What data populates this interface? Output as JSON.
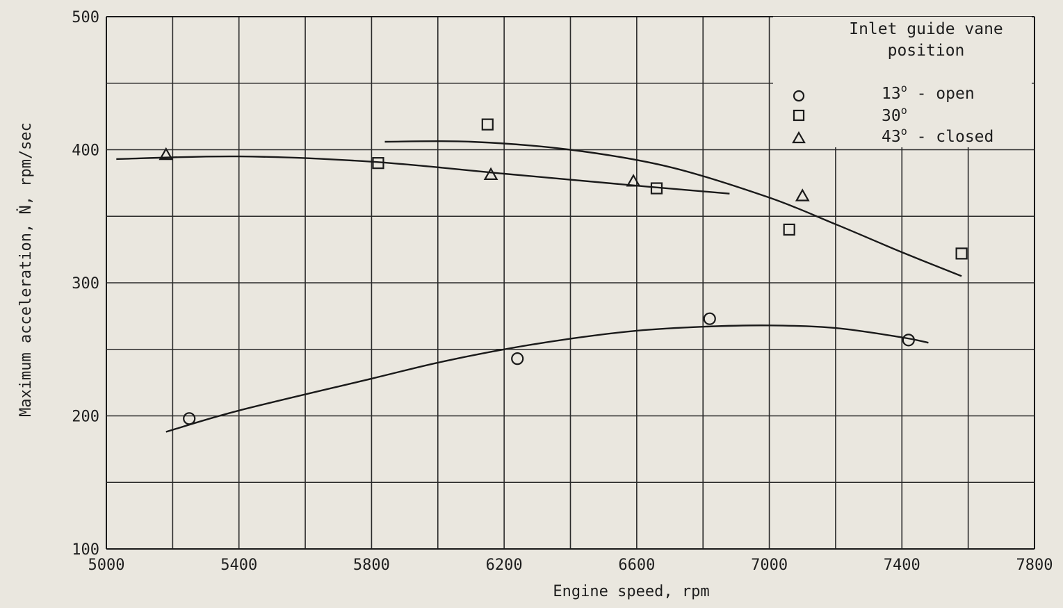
{
  "chart_data": {
    "type": "line",
    "title": "",
    "xlabel": "Engine speed, rpm",
    "ylabel": "Maximum acceleration, Ṅ, rpm/sec",
    "xlim": [
      5000,
      7800
    ],
    "ylim": [
      100,
      500
    ],
    "x_ticks": [
      5000,
      5400,
      5800,
      6200,
      6600,
      7000,
      7400,
      7800
    ],
    "y_ticks": [
      100,
      200,
      300,
      400,
      500
    ],
    "x_grid_step": 200,
    "y_grid_step": 50,
    "grid": true,
    "legend": {
      "title": [
        "Inlet guide vane",
        "position"
      ],
      "placement": "top-right",
      "entries": [
        {
          "marker": "circle",
          "label": "13° - open",
          "number": "13",
          "degree": "o",
          "suffix": " - open"
        },
        {
          "marker": "square",
          "label": "30°",
          "number": "30",
          "degree": "o",
          "suffix": ""
        },
        {
          "marker": "triangle",
          "label": "43° - closed",
          "number": "43",
          "degree": "o",
          "suffix": " - closed"
        }
      ]
    },
    "series": [
      {
        "marker": "circle",
        "points": [
          [
            5250,
            198
          ],
          [
            6240,
            243
          ],
          [
            6820,
            273
          ],
          [
            7420,
            257
          ]
        ]
      },
      {
        "marker": "square",
        "points": [
          [
            5820,
            390
          ],
          [
            6150,
            419
          ],
          [
            6660,
            371
          ],
          [
            7060,
            340
          ],
          [
            7580,
            322
          ]
        ]
      },
      {
        "marker": "triangle",
        "points": [
          [
            5180,
            396
          ],
          [
            6160,
            381
          ],
          [
            6590,
            376
          ],
          [
            7100,
            365
          ]
        ]
      }
    ],
    "curves": [
      {
        "fits": "circle",
        "points": [
          [
            5180,
            188
          ],
          [
            5400,
            204
          ],
          [
            5800,
            228
          ],
          [
            6000,
            240
          ],
          [
            6200,
            250
          ],
          [
            6400,
            258
          ],
          [
            6600,
            264
          ],
          [
            6800,
            267
          ],
          [
            7000,
            268
          ],
          [
            7200,
            266
          ],
          [
            7400,
            259
          ],
          [
            7480,
            255
          ]
        ]
      },
      {
        "fits": "triangle",
        "points": [
          [
            5030,
            393
          ],
          [
            5400,
            395
          ],
          [
            5800,
            391
          ],
          [
            6200,
            382
          ],
          [
            6600,
            373
          ],
          [
            6880,
            367
          ]
        ]
      },
      {
        "fits": "square",
        "points": [
          [
            5840,
            406
          ],
          [
            6100,
            406
          ],
          [
            6400,
            400
          ],
          [
            6700,
            387
          ],
          [
            7000,
            364
          ],
          [
            7200,
            344
          ],
          [
            7400,
            323
          ],
          [
            7580,
            305
          ]
        ]
      }
    ]
  }
}
